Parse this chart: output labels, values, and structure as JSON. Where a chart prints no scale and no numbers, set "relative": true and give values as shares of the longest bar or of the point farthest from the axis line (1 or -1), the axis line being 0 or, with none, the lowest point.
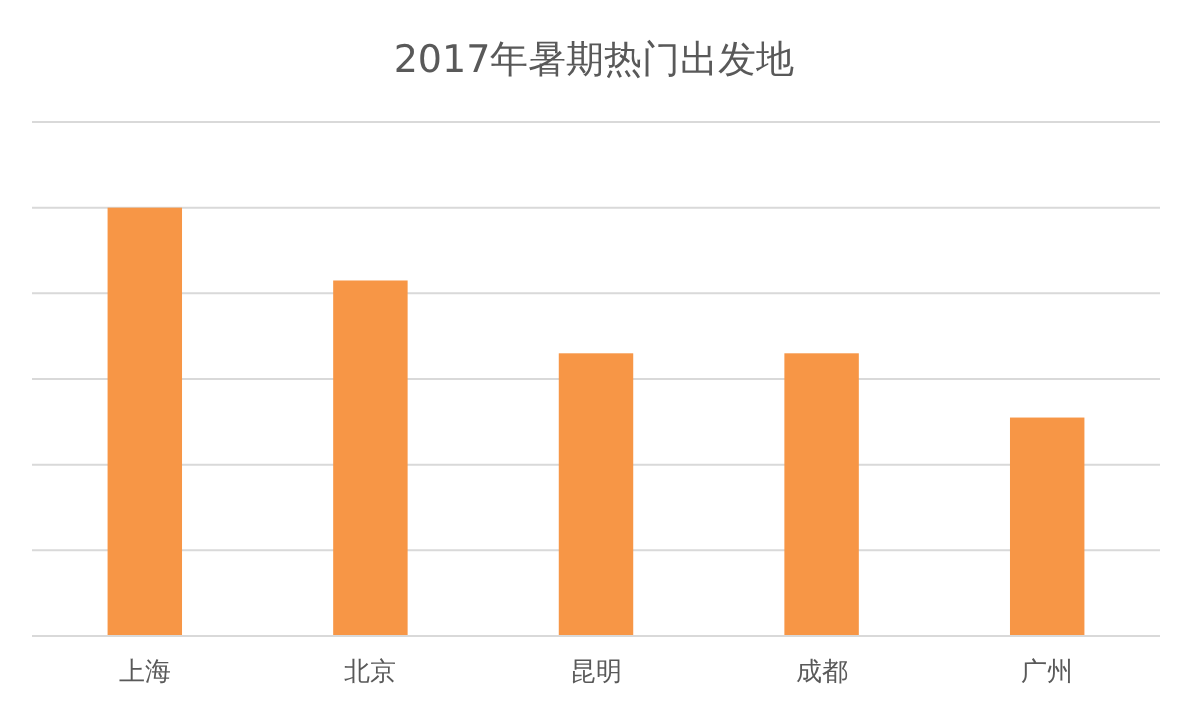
{
  "chart_data": {
    "type": "bar",
    "title": "2017年暑期热门出发地",
    "categories": [
      "上海",
      "北京",
      "昆明",
      "成都",
      "广州"
    ],
    "values": [
      1,
      0.83,
      0.66,
      0.66,
      0.51
    ],
    "color": "#f79646",
    "relative": true,
    "grid": true
  }
}
